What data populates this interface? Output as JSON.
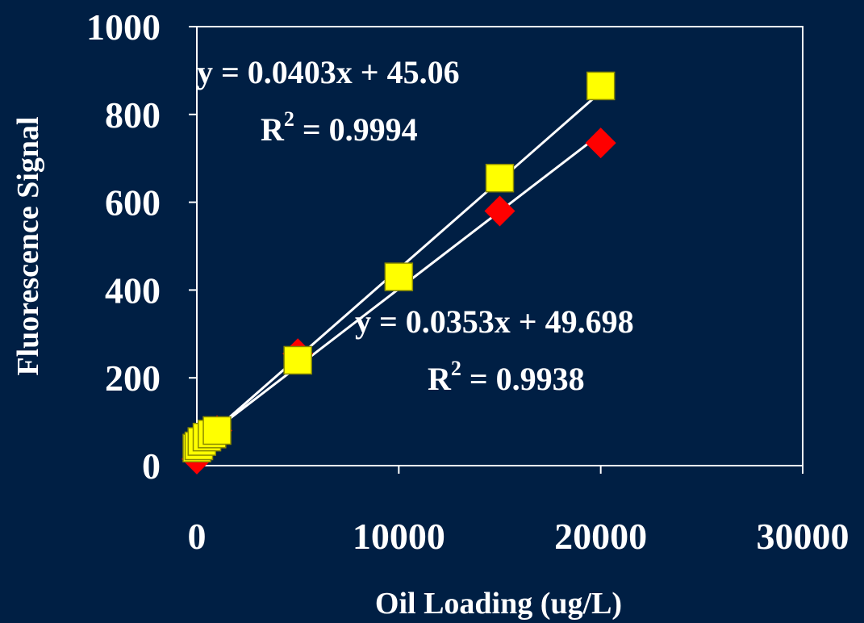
{
  "chart_data": {
    "type": "scatter",
    "xlabel": "Oil Loading (ug/L)",
    "ylabel": "Fluorescence Signal",
    "xlim": [
      0,
      30000
    ],
    "ylim": [
      0,
      1000
    ],
    "xticks": [
      "0",
      "10000",
      "20000",
      "30000"
    ],
    "yticks": [
      "0",
      "200",
      "400",
      "600",
      "800",
      "1000"
    ],
    "grid": false,
    "colors": {
      "background": "#001F44",
      "axes": "#FFFFFF",
      "trendline": "#FFFFFF",
      "series_a": "#FF0000",
      "series_b": "#FFFF00"
    },
    "series": [
      {
        "marker": "diamond",
        "color": "#FF0000",
        "points": [
          {
            "x": 0,
            "y": 15
          },
          {
            "x": 100,
            "y": 30
          },
          {
            "x": 250,
            "y": 45
          },
          {
            "x": 500,
            "y": 60
          },
          {
            "x": 750,
            "y": 70
          },
          {
            "x": 1000,
            "y": 80
          },
          {
            "x": 5000,
            "y": 255
          },
          {
            "x": 15000,
            "y": 580
          },
          {
            "x": 20000,
            "y": 735
          }
        ],
        "trendline": {
          "slope": 0.0353,
          "intercept": 49.698
        },
        "equation": "y = 0.0353x + 49.698",
        "r2_label": "R",
        "r2_sup": "2",
        "r2_value": " = 0.9938"
      },
      {
        "marker": "square",
        "color": "#FFFF00",
        "points": [
          {
            "x": 0,
            "y": 40
          },
          {
            "x": 100,
            "y": 45
          },
          {
            "x": 250,
            "y": 55
          },
          {
            "x": 500,
            "y": 65
          },
          {
            "x": 750,
            "y": 72
          },
          {
            "x": 1000,
            "y": 80
          },
          {
            "x": 5000,
            "y": 240
          },
          {
            "x": 10000,
            "y": 430
          },
          {
            "x": 15000,
            "y": 655
          },
          {
            "x": 20000,
            "y": 865
          }
        ],
        "trendline": {
          "slope": 0.0403,
          "intercept": 45.06
        },
        "equation": "y = 0.0403x + 45.06",
        "r2_label": "R",
        "r2_sup": "2",
        "r2_value": " = 0.9994"
      }
    ]
  }
}
